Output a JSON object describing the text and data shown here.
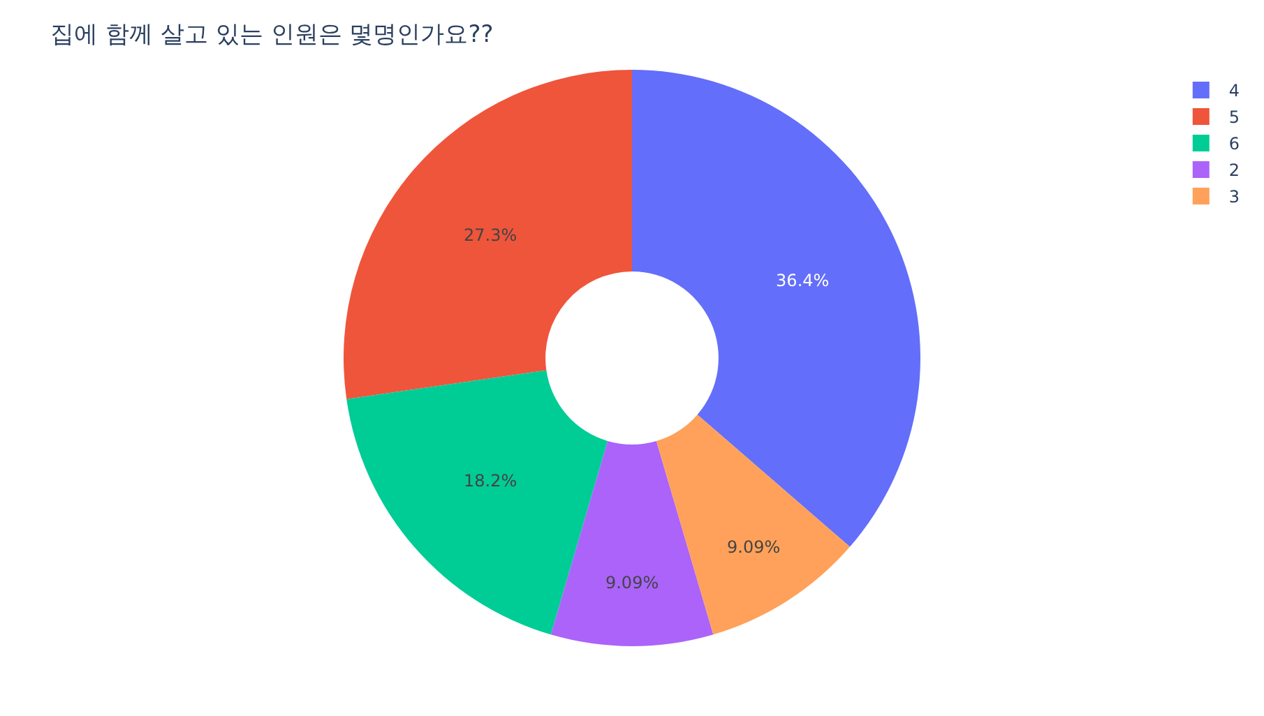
{
  "chart_data": {
    "type": "donut",
    "title": "집에 함께 살고 있는 인원은 몇명인가요??",
    "categories": [
      "4",
      "5",
      "6",
      "2",
      "3"
    ],
    "values": [
      36.4,
      27.3,
      18.2,
      9.09,
      9.09
    ],
    "colors": [
      "#636efa",
      "#ef553b",
      "#00cc96",
      "#ab63fa",
      "#ffa15a"
    ],
    "value_labels": [
      "36.4%",
      "27.3%",
      "18.2%",
      "9.09%",
      "9.09%"
    ],
    "legend": "top right"
  }
}
